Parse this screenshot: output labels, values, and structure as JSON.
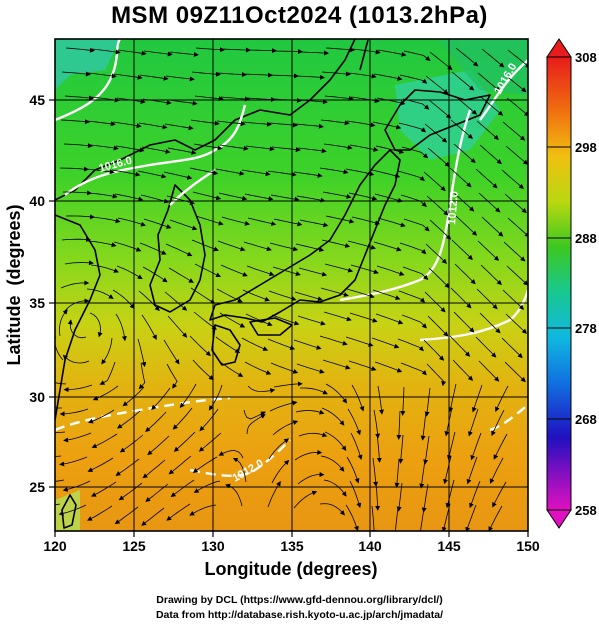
{
  "title": "MSM 09Z11Oct2024 (1013.2hPa)",
  "x_axis": {
    "label": "Longitude (degrees)",
    "range": [
      120,
      150
    ],
    "ticks": [
      "120",
      "125",
      "130",
      "135",
      "140",
      "145",
      "150"
    ]
  },
  "y_axis": {
    "label": "Latitude  (degrees)",
    "range": [
      22.6,
      47.9
    ],
    "ticks": [
      "25",
      "30",
      "35",
      "40",
      "45"
    ]
  },
  "colorbar": {
    "min": 258,
    "max": 308,
    "tick_labels": [
      "258",
      "268",
      "278",
      "288",
      "298",
      "308"
    ]
  },
  "contour_labels": [
    "1016.0",
    "1012.0",
    "1012.0",
    "1016.0"
  ],
  "credits": {
    "line1": "Drawing by DCL (https://www.gfd-dennou.org/library/dcl/)",
    "line2": "Data from http://database.rish.kyoto-u.ac.jp/arch/jmadata/"
  }
}
